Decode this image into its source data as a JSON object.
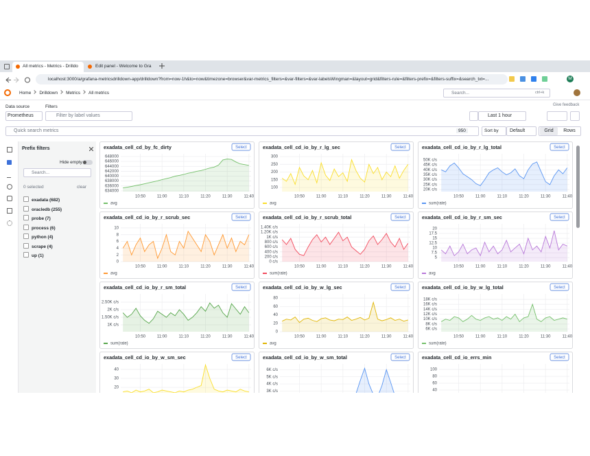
{
  "browser": {
    "tabs": [
      "All metrics - Metrics - Drilldo",
      "Edit panel - Welcome to Gra"
    ],
    "url": "localhost:3000/a/grafana-metricsdrilldown-app/drilldown?from=now-1h&to=now&timezone=browser&var-metrics_filters=&var-filters=&var-labelsWingman=&layout=grid&filters-rule=&filters-prefix=&filters-suffix=&search_txt=...",
    "profile": "M"
  },
  "nav": {
    "breadcrumbs": [
      "Home",
      "Drilldown",
      "Metrics",
      "All metrics"
    ],
    "search": "Search...",
    "shortcut": "ctrl+k"
  },
  "toolbar": {
    "data_source_label": "Data source",
    "data_source": "Prometheus",
    "filters_label": "Filters",
    "filters_placeholder": "Filter by label values",
    "feedback": "Give feedback",
    "time_range": "Last 1 hour",
    "quick_search": "Quick search metrics",
    "metric_count": 950,
    "sort_label": "Sort by",
    "sort_value": "Default",
    "layouts": [
      "Grid",
      "Rows"
    ]
  },
  "sidebar": {
    "title": "Prefix filters",
    "hide_empty": "Hide empty",
    "search": "Search...",
    "selected": "0 selected",
    "clear": "clear",
    "prefixes": [
      "exadata (682)",
      "oracledb (255)",
      "probe (7)",
      "process (6)",
      "python (4)",
      "scrape (4)",
      "up (1)"
    ]
  },
  "panels": {
    "select_label": "Select",
    "time_axis": {
      "x": [
        642,
        644,
        646,
        648,
        650,
        652,
        654,
        656,
        658,
        660,
        662,
        664,
        666,
        668,
        670,
        672,
        674,
        676,
        678,
        680,
        682,
        684,
        686,
        688,
        690,
        692,
        694,
        696,
        698,
        700
      ],
      "xlim": [
        641,
        701
      ],
      "xticks": [
        {
          "value": 650,
          "label": "10:50"
        },
        {
          "value": 660,
          "label": "11:00"
        },
        {
          "value": 670,
          "label": "11:10"
        },
        {
          "value": 680,
          "label": "11:20"
        },
        {
          "value": 690,
          "label": "11:30"
        },
        {
          "value": 700,
          "label": "11:40"
        }
      ]
    },
    "items": [
      {
        "title": "exadata_cell_cd_by_fc_dirty",
        "ylim": [
          633700,
          649100
        ],
        "yticks": [
          634000,
          636000,
          638000,
          640000,
          642000,
          644000,
          646000,
          648000
        ],
        "series": {
          "name": "avg",
          "color": "#73bf69",
          "values": [
            635200,
            635500,
            635800,
            636200,
            636500,
            636900,
            637300,
            637700,
            638100,
            638600,
            639000,
            639400,
            640000,
            640300,
            640700,
            641200,
            641500,
            642000,
            642300,
            642800,
            643300,
            643700,
            644500,
            646600,
            647000,
            646800,
            645800,
            645000,
            644700,
            644400
          ]
        }
      },
      {
        "title": "exadata_cell_cd_io_by_r_lg_sec",
        "ylim": [
          73,
          318
        ],
        "yticks": [
          100,
          150,
          200,
          250,
          300
        ],
        "series": {
          "name": "avg",
          "color": "#fade2a",
          "values": [
            160,
            140,
            190,
            120,
            230,
            175,
            150,
            210,
            130,
            260,
            180,
            145,
            220,
            170,
            195,
            140,
            280,
            210,
            160,
            135,
            250,
            190,
            230,
            150,
            200,
            170,
            240,
            160,
            210,
            250
          ]
        }
      },
      {
        "title": "exadata_cell_cd_io_by_r_lg_total",
        "ylim": [
          17900,
          56250
        ],
        "yticks": [
          {
            "value": 20000,
            "label": "20K c/s"
          },
          {
            "value": 25000,
            "label": "25K c/s"
          },
          {
            "value": 30000,
            "label": "30K c/s"
          },
          {
            "value": 35000,
            "label": "35K c/s"
          },
          {
            "value": 40000,
            "label": "40K c/s"
          },
          {
            "value": 45000,
            "label": "45K c/s"
          },
          {
            "value": 50000,
            "label": "50K c/s"
          }
        ],
        "series": {
          "name": "sum(rate)",
          "color": "#5794f2",
          "values": [
            40000,
            38000,
            44000,
            47000,
            42000,
            36000,
            33000,
            30000,
            26000,
            24000,
            30000,
            37000,
            40000,
            42000,
            38000,
            35000,
            37000,
            41000,
            34000,
            31000,
            40000,
            46000,
            48000,
            38000,
            28000,
            25000,
            34000,
            40000,
            36000,
            42000
          ]
        }
      },
      {
        "title": "exadata_cell_cd_io_by_r_scrub_sec",
        "ylim": [
          0,
          11.2
        ],
        "yticks": [
          0,
          2,
          4,
          6,
          8,
          10
        ],
        "series": {
          "name": "avg",
          "color": "#ff9830",
          "values": [
            4,
            6,
            2,
            5,
            7,
            3,
            5,
            6,
            1,
            4,
            8,
            3,
            2,
            6,
            4,
            9,
            7,
            5,
            3,
            8,
            6,
            2,
            5,
            8,
            4,
            7,
            3,
            6,
            5,
            8
          ]
        }
      },
      {
        "title": "exadata_cell_cd_io_by_r_scrub_total",
        "ylim": [
          0,
          1540
        ],
        "yticks": [
          {
            "value": 0,
            "label": "0 c/s"
          },
          {
            "value": 200,
            "label": "200 c/s"
          },
          {
            "value": 400,
            "label": "400 c/s"
          },
          {
            "value": 600,
            "label": "600 c/s"
          },
          {
            "value": 800,
            "label": "800 c/s"
          },
          {
            "value": 1000,
            "label": "1K c/s"
          },
          {
            "value": 1200,
            "label": "1.20K c/s"
          },
          {
            "value": 1400,
            "label": "1.40K c/s"
          }
        ],
        "series": {
          "name": "sum(rate)",
          "color": "#f2495c",
          "values": [
            900,
            700,
            950,
            500,
            300,
            250,
            600,
            900,
            1100,
            800,
            1000,
            700,
            950,
            1200,
            850,
            1000,
            600,
            450,
            300,
            500,
            850,
            1050,
            700,
            900,
            1150,
            800,
            600,
            950,
            500,
            750
          ]
        }
      },
      {
        "title": "exadata_cell_cd_io_by_r_sm_sec",
        "ylim": [
          2.9,
          22.5
        ],
        "yticks": [
          5,
          7.5,
          10,
          12.5,
          15,
          17.5,
          20
        ],
        "series": {
          "name": "avg",
          "color": "#b877d9",
          "values": [
            9,
            7,
            11,
            6,
            8,
            12,
            7,
            9,
            10,
            6,
            13,
            8,
            11,
            7,
            9,
            14,
            8,
            10,
            12,
            7,
            15,
            9,
            11,
            8,
            16,
            10,
            19,
            9,
            12,
            11
          ]
        }
      },
      {
        "title": "exadata_cell_cd_io_by_r_sm_total",
        "ylim": [
          545,
          3045
        ],
        "yticks": [
          {
            "value": 1000,
            "label": "1K c/s"
          },
          {
            "value": 1500,
            "label": "1.50K c/s"
          },
          {
            "value": 2000,
            "label": "2K c/s"
          },
          {
            "value": 2500,
            "label": "2.50K c/s"
          }
        ],
        "series": {
          "name": "sum(rate)",
          "color": "#56a64b",
          "values": [
            1800,
            1500,
            1700,
            2100,
            1600,
            1300,
            1100,
            1400,
            1900,
            1700,
            1500,
            1800,
            1600,
            2000,
            1700,
            1300,
            1500,
            1800,
            2200,
            1900,
            2450,
            2100,
            2300,
            1800,
            1500,
            2400,
            2050,
            1700,
            2200,
            1800
          ]
        }
      },
      {
        "title": "exadata_cell_cd_io_by_w_lg_sec",
        "ylim": [
          0,
          90
        ],
        "yticks": [
          0,
          20,
          40,
          60,
          80
        ],
        "series": {
          "name": "avg",
          "color": "#e0b400",
          "values": [
            25,
            30,
            28,
            35,
            22,
            30,
            32,
            27,
            24,
            31,
            33,
            28,
            26,
            30,
            29,
            35,
            27,
            30,
            34,
            28,
            32,
            70,
            30,
            26,
            29,
            33,
            27,
            30,
            25,
            28
          ]
        }
      },
      {
        "title": "exadata_cell_cd_io_by_w_lg_total",
        "ylim": [
          4900,
          20200
        ],
        "yticks": [
          {
            "value": 6000,
            "label": "6K c/s"
          },
          {
            "value": 8000,
            "label": "8K c/s"
          },
          {
            "value": 10000,
            "label": "10K c/s"
          },
          {
            "value": 12000,
            "label": "12K c/s"
          },
          {
            "value": 14000,
            "label": "14K c/s"
          },
          {
            "value": 16000,
            "label": "16K c/s"
          },
          {
            "value": 18000,
            "label": "18K c/s"
          }
        ],
        "series": {
          "name": "sum(rate)",
          "color": "#73bf69",
          "values": [
            9000,
            10000,
            9500,
            11000,
            10500,
            9000,
            10000,
            11500,
            10000,
            9500,
            10500,
            11000,
            10000,
            10500,
            9500,
            11000,
            10000,
            12000,
            9000,
            10500,
            11000,
            16000,
            10000,
            9000,
            10500,
            11000,
            9500,
            10000,
            10500,
            10000
          ]
        }
      },
      {
        "title": "exadata_cell_cd_io_by_w_sm_sec",
        "ylim": [
          4,
          46
        ],
        "yticks": [
          20,
          30,
          40
        ],
        "series": {
          "color": "#fade2a",
          "values": [
            15,
            16,
            14,
            17,
            15,
            16,
            18,
            14,
            15,
            17,
            16,
            15,
            14,
            16,
            15,
            17,
            18,
            20,
            22,
            45,
            30,
            18,
            16,
            15,
            17,
            16,
            15,
            18,
            16,
            15
          ]
        }
      },
      {
        "title": "exadata_cell_cd_io_by_w_sm_total",
        "ylim": [
          1500,
          6800
        ],
        "yticks": [
          {
            "value": 3000,
            "label": "3K c/s"
          },
          {
            "value": 4000,
            "label": "4K c/s"
          },
          {
            "value": 5000,
            "label": "5K c/s"
          },
          {
            "value": 6000,
            "label": "6K c/s"
          }
        ],
        "series": {
          "color": "#5794f2",
          "values": [
            2200,
            2100,
            2300,
            2000,
            2200,
            2100,
            2000,
            2300,
            2200,
            2100,
            2000,
            2200,
            2300,
            2100,
            2000,
            2200,
            2400,
            2600,
            4500,
            6200,
            4000,
            2500,
            2200,
            3800,
            6000,
            4200,
            2300,
            2100,
            2200,
            2000
          ]
        }
      },
      {
        "title": "exadata_cell_cd_io_errs_min",
        "ylim": [
          6,
          116
        ],
        "yticks": [
          40,
          60,
          80,
          100
        ]
      }
    ]
  }
}
